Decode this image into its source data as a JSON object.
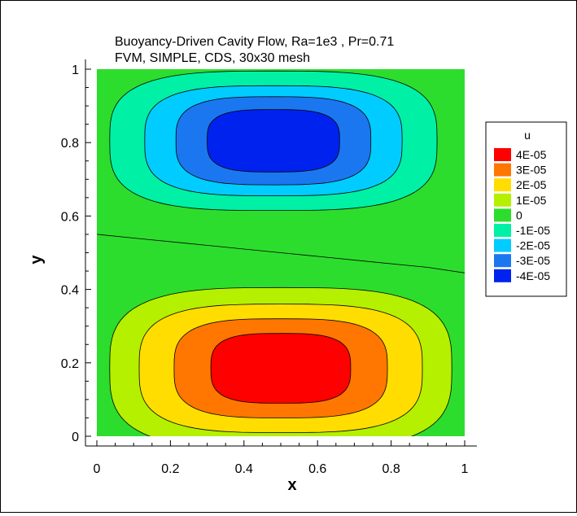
{
  "chart_data": {
    "type": "heatmap",
    "title_lines": [
      "Buoyancy-Driven Cavity Flow, Ra=1e3 , Pr=0.71",
      "FVM, SIMPLE, CDS, 30x30 mesh"
    ],
    "xlabel": "x",
    "ylabel": "y",
    "xlim": [
      0,
      1
    ],
    "ylim": [
      0,
      1
    ],
    "x_ticks": [
      "0",
      "0.2",
      "0.4",
      "0.6",
      "0.8",
      "1"
    ],
    "y_ticks": [
      "0",
      "0.2",
      "0.4",
      "0.6",
      "0.8",
      "1"
    ],
    "grid": false,
    "legend": {
      "title": "u",
      "placement": "right",
      "levels": [
        {
          "label": "4E-05",
          "value": 4e-05,
          "color": "#ff0000"
        },
        {
          "label": "3E-05",
          "value": 3e-05,
          "color": "#ff7700"
        },
        {
          "label": "2E-05",
          "value": 2e-05,
          "color": "#ffdd00"
        },
        {
          "label": "1E-05",
          "value": 1e-05,
          "color": "#b4f000"
        },
        {
          "label": "0",
          "value": 0,
          "color": "#2ddd2d"
        },
        {
          "label": "-1E-05",
          "value": -1e-05,
          "color": "#00f0a5"
        },
        {
          "label": "-2E-05",
          "value": -2e-05,
          "color": "#00ccff"
        },
        {
          "label": "-3E-05",
          "value": -3e-05,
          "color": "#1a77f0"
        },
        {
          "label": "-4E-05",
          "value": -4e-05,
          "color": "#0022ee"
        }
      ]
    },
    "field": {
      "background_color": "#2ddd2d",
      "lower_cell": {
        "center": [
          0.5,
          0.185
        ],
        "levels": [
          {
            "value": 1e-05,
            "color": "#b4f000",
            "rx": 0.465,
            "ry": 0.22
          },
          {
            "value": 2e-05,
            "color": "#ffdd00",
            "rx": 0.385,
            "ry": 0.175
          },
          {
            "value": 3e-05,
            "color": "#ff7700",
            "rx": 0.29,
            "ry": 0.135
          },
          {
            "value": 4e-05,
            "color": "#ff0000",
            "rx": 0.19,
            "ry": 0.095
          }
        ]
      },
      "upper_cell": {
        "center": [
          0.48,
          0.805
        ],
        "levels": [
          {
            "value": -1e-05,
            "color": "#00f0a5",
            "rx": 0.445,
            "ry": 0.19
          },
          {
            "value": -2e-05,
            "color": "#00ccff",
            "rx": 0.35,
            "ry": 0.15
          },
          {
            "value": -3e-05,
            "color": "#1a77f0",
            "rx": 0.265,
            "ry": 0.12
          },
          {
            "value": -4e-05,
            "color": "#0022ee",
            "rx": 0.18,
            "ry": 0.085
          }
        ]
      },
      "zero_contour": [
        [
          0,
          0.55
        ],
        [
          0.1,
          0.54
        ],
        [
          0.25,
          0.525
        ],
        [
          0.4,
          0.51
        ],
        [
          0.5,
          0.5
        ],
        [
          0.6,
          0.49
        ],
        [
          0.75,
          0.475
        ],
        [
          0.9,
          0.46
        ],
        [
          1,
          0.445
        ]
      ]
    }
  }
}
